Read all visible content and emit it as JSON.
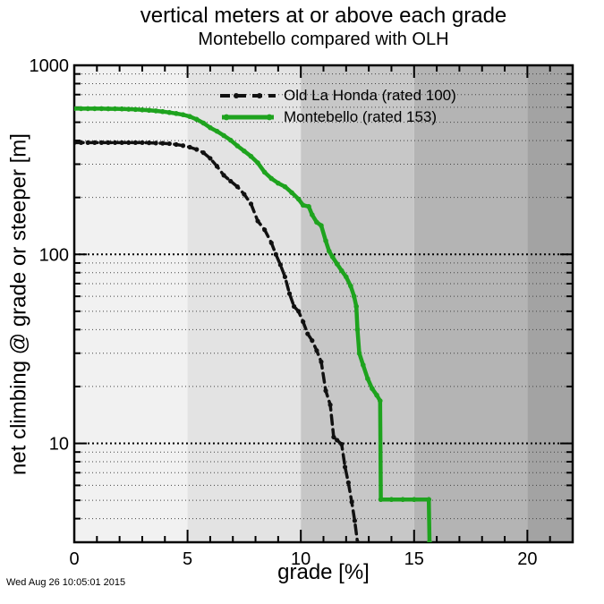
{
  "header": {
    "title": "vertical meters at or above each grade",
    "subtitle": "Montebello compared with OLH"
  },
  "axes": {
    "x_title": "grade [%]",
    "y_title": "net climbing @ grade or steeper [m]"
  },
  "footer": {
    "timestamp": "Wed Aug 26 10:05:01 2015"
  },
  "legend": {
    "items": [
      {
        "label": "Old La Honda (rated 100)",
        "color": "#111111",
        "style": "dashed"
      },
      {
        "label": "Montebello (rated 153)",
        "color": "#1ea31e",
        "style": "solid"
      }
    ]
  },
  "colors": {
    "background": "#ffffff",
    "frame": "#000000",
    "grid_minor": "#444444",
    "grid_major": "#000000",
    "olh": "#111111",
    "montebello": "#1ea31e"
  },
  "chart_data": {
    "type": "line",
    "title": "vertical meters at or above each grade",
    "subtitle": "Montebello compared with OLH",
    "xlabel": "grade [%]",
    "ylabel": "net climbing @ grade or steeper [m]",
    "xlim": [
      0,
      22
    ],
    "ylim": [
      3,
      1000
    ],
    "yscale": "log",
    "grid": "horizontal-dotted",
    "legend_position": "top-center-inside",
    "x_ticks_major": [
      0,
      5,
      10,
      15,
      20
    ],
    "x_minor_step": 1,
    "y_ticks_major": [
      10,
      100,
      1000
    ],
    "background_bands": [
      {
        "from": 0,
        "to": 5,
        "color": "#f1f1f1"
      },
      {
        "from": 5,
        "to": 10,
        "color": "#e3e3e3"
      },
      {
        "from": 10,
        "to": 15,
        "color": "#c7c7c7"
      },
      {
        "from": 15,
        "to": 20,
        "color": "#b4b4b4"
      },
      {
        "from": 20,
        "to": 22,
        "color": "#a3a3a3"
      }
    ],
    "series": [
      {
        "name": "Old La Honda (rated 100)",
        "rated": 100,
        "color": "#111111",
        "style": "dashed",
        "marker": "circle",
        "points": [
          [
            0,
            390
          ],
          [
            0.3,
            390
          ],
          [
            0.6,
            390
          ],
          [
            0.9,
            390
          ],
          [
            1.2,
            390
          ],
          [
            1.5,
            390
          ],
          [
            1.8,
            390
          ],
          [
            2.1,
            390
          ],
          [
            2.4,
            390
          ],
          [
            2.7,
            390
          ],
          [
            3,
            390
          ],
          [
            3.3,
            389
          ],
          [
            3.6,
            388
          ],
          [
            3.9,
            387
          ],
          [
            4.2,
            385
          ],
          [
            4.5,
            381
          ],
          [
            4.8,
            376
          ],
          [
            5.1,
            369
          ],
          [
            5.4,
            359
          ],
          [
            5.7,
            345
          ],
          [
            6,
            322
          ],
          [
            6.3,
            292
          ],
          [
            6.6,
            262
          ],
          [
            6.9,
            244
          ],
          [
            7.2,
            228
          ],
          [
            7.5,
            208
          ],
          [
            7.8,
            185
          ],
          [
            8.1,
            150
          ],
          [
            8.4,
            135
          ],
          [
            8.7,
            115
          ],
          [
            8.9,
            100
          ],
          [
            9.1,
            88
          ],
          [
            9.3,
            76
          ],
          [
            9.5,
            62
          ],
          [
            9.7,
            53
          ],
          [
            9.9,
            50
          ],
          [
            10.1,
            44
          ],
          [
            10.3,
            38
          ],
          [
            10.5,
            35
          ],
          [
            10.7,
            31
          ],
          [
            10.9,
            27
          ],
          [
            11.1,
            19
          ],
          [
            11.3,
            16
          ],
          [
            11.45,
            10.8
          ],
          [
            11.6,
            10.4
          ],
          [
            11.8,
            9.9
          ],
          [
            11.95,
            7.5
          ],
          [
            12.1,
            6.2
          ],
          [
            12.25,
            4.9
          ],
          [
            12.38,
            3.9
          ],
          [
            12.5,
            3.0
          ]
        ]
      },
      {
        "name": "Montebello (rated 153)",
        "rated": 153,
        "color": "#1ea31e",
        "style": "solid",
        "marker": "circle",
        "points": [
          [
            0,
            590
          ],
          [
            0.3,
            590
          ],
          [
            0.6,
            590
          ],
          [
            0.9,
            590
          ],
          [
            1.2,
            590
          ],
          [
            1.5,
            589
          ],
          [
            1.8,
            589
          ],
          [
            2.1,
            588
          ],
          [
            2.4,
            586
          ],
          [
            2.7,
            584
          ],
          [
            3,
            581
          ],
          [
            3.3,
            578
          ],
          [
            3.6,
            574
          ],
          [
            3.9,
            569
          ],
          [
            4.2,
            563
          ],
          [
            4.5,
            556
          ],
          [
            4.8,
            548
          ],
          [
            5.1,
            536
          ],
          [
            5.4,
            518
          ],
          [
            5.7,
            495
          ],
          [
            6,
            468
          ],
          [
            6.3,
            448
          ],
          [
            6.6,
            425
          ],
          [
            6.9,
            402
          ],
          [
            7.2,
            375
          ],
          [
            7.5,
            352
          ],
          [
            7.8,
            330
          ],
          [
            8.1,
            305
          ],
          [
            8.4,
            272
          ],
          [
            8.7,
            252
          ],
          [
            9,
            238
          ],
          [
            9.3,
            228
          ],
          [
            9.6,
            212
          ],
          [
            9.9,
            196
          ],
          [
            10.1,
            182
          ],
          [
            10.35,
            179
          ],
          [
            10.5,
            162
          ],
          [
            10.7,
            148
          ],
          [
            10.9,
            142
          ],
          [
            11.1,
            118
          ],
          [
            11.25,
            104
          ],
          [
            11.4,
            97
          ],
          [
            11.6,
            89
          ],
          [
            11.8,
            82
          ],
          [
            12,
            76
          ],
          [
            12.2,
            68
          ],
          [
            12.35,
            60
          ],
          [
            12.45,
            53
          ],
          [
            12.5,
            40
          ],
          [
            12.58,
            30
          ],
          [
            12.75,
            26
          ],
          [
            12.95,
            22
          ],
          [
            13.15,
            19.5
          ],
          [
            13.35,
            18
          ],
          [
            13.5,
            16.8
          ],
          [
            13.53,
            5.05
          ],
          [
            14,
            5.05
          ],
          [
            14.5,
            5.05
          ],
          [
            15,
            5.05
          ],
          [
            15.65,
            5.05
          ],
          [
            15.68,
            3.0
          ]
        ]
      }
    ]
  }
}
